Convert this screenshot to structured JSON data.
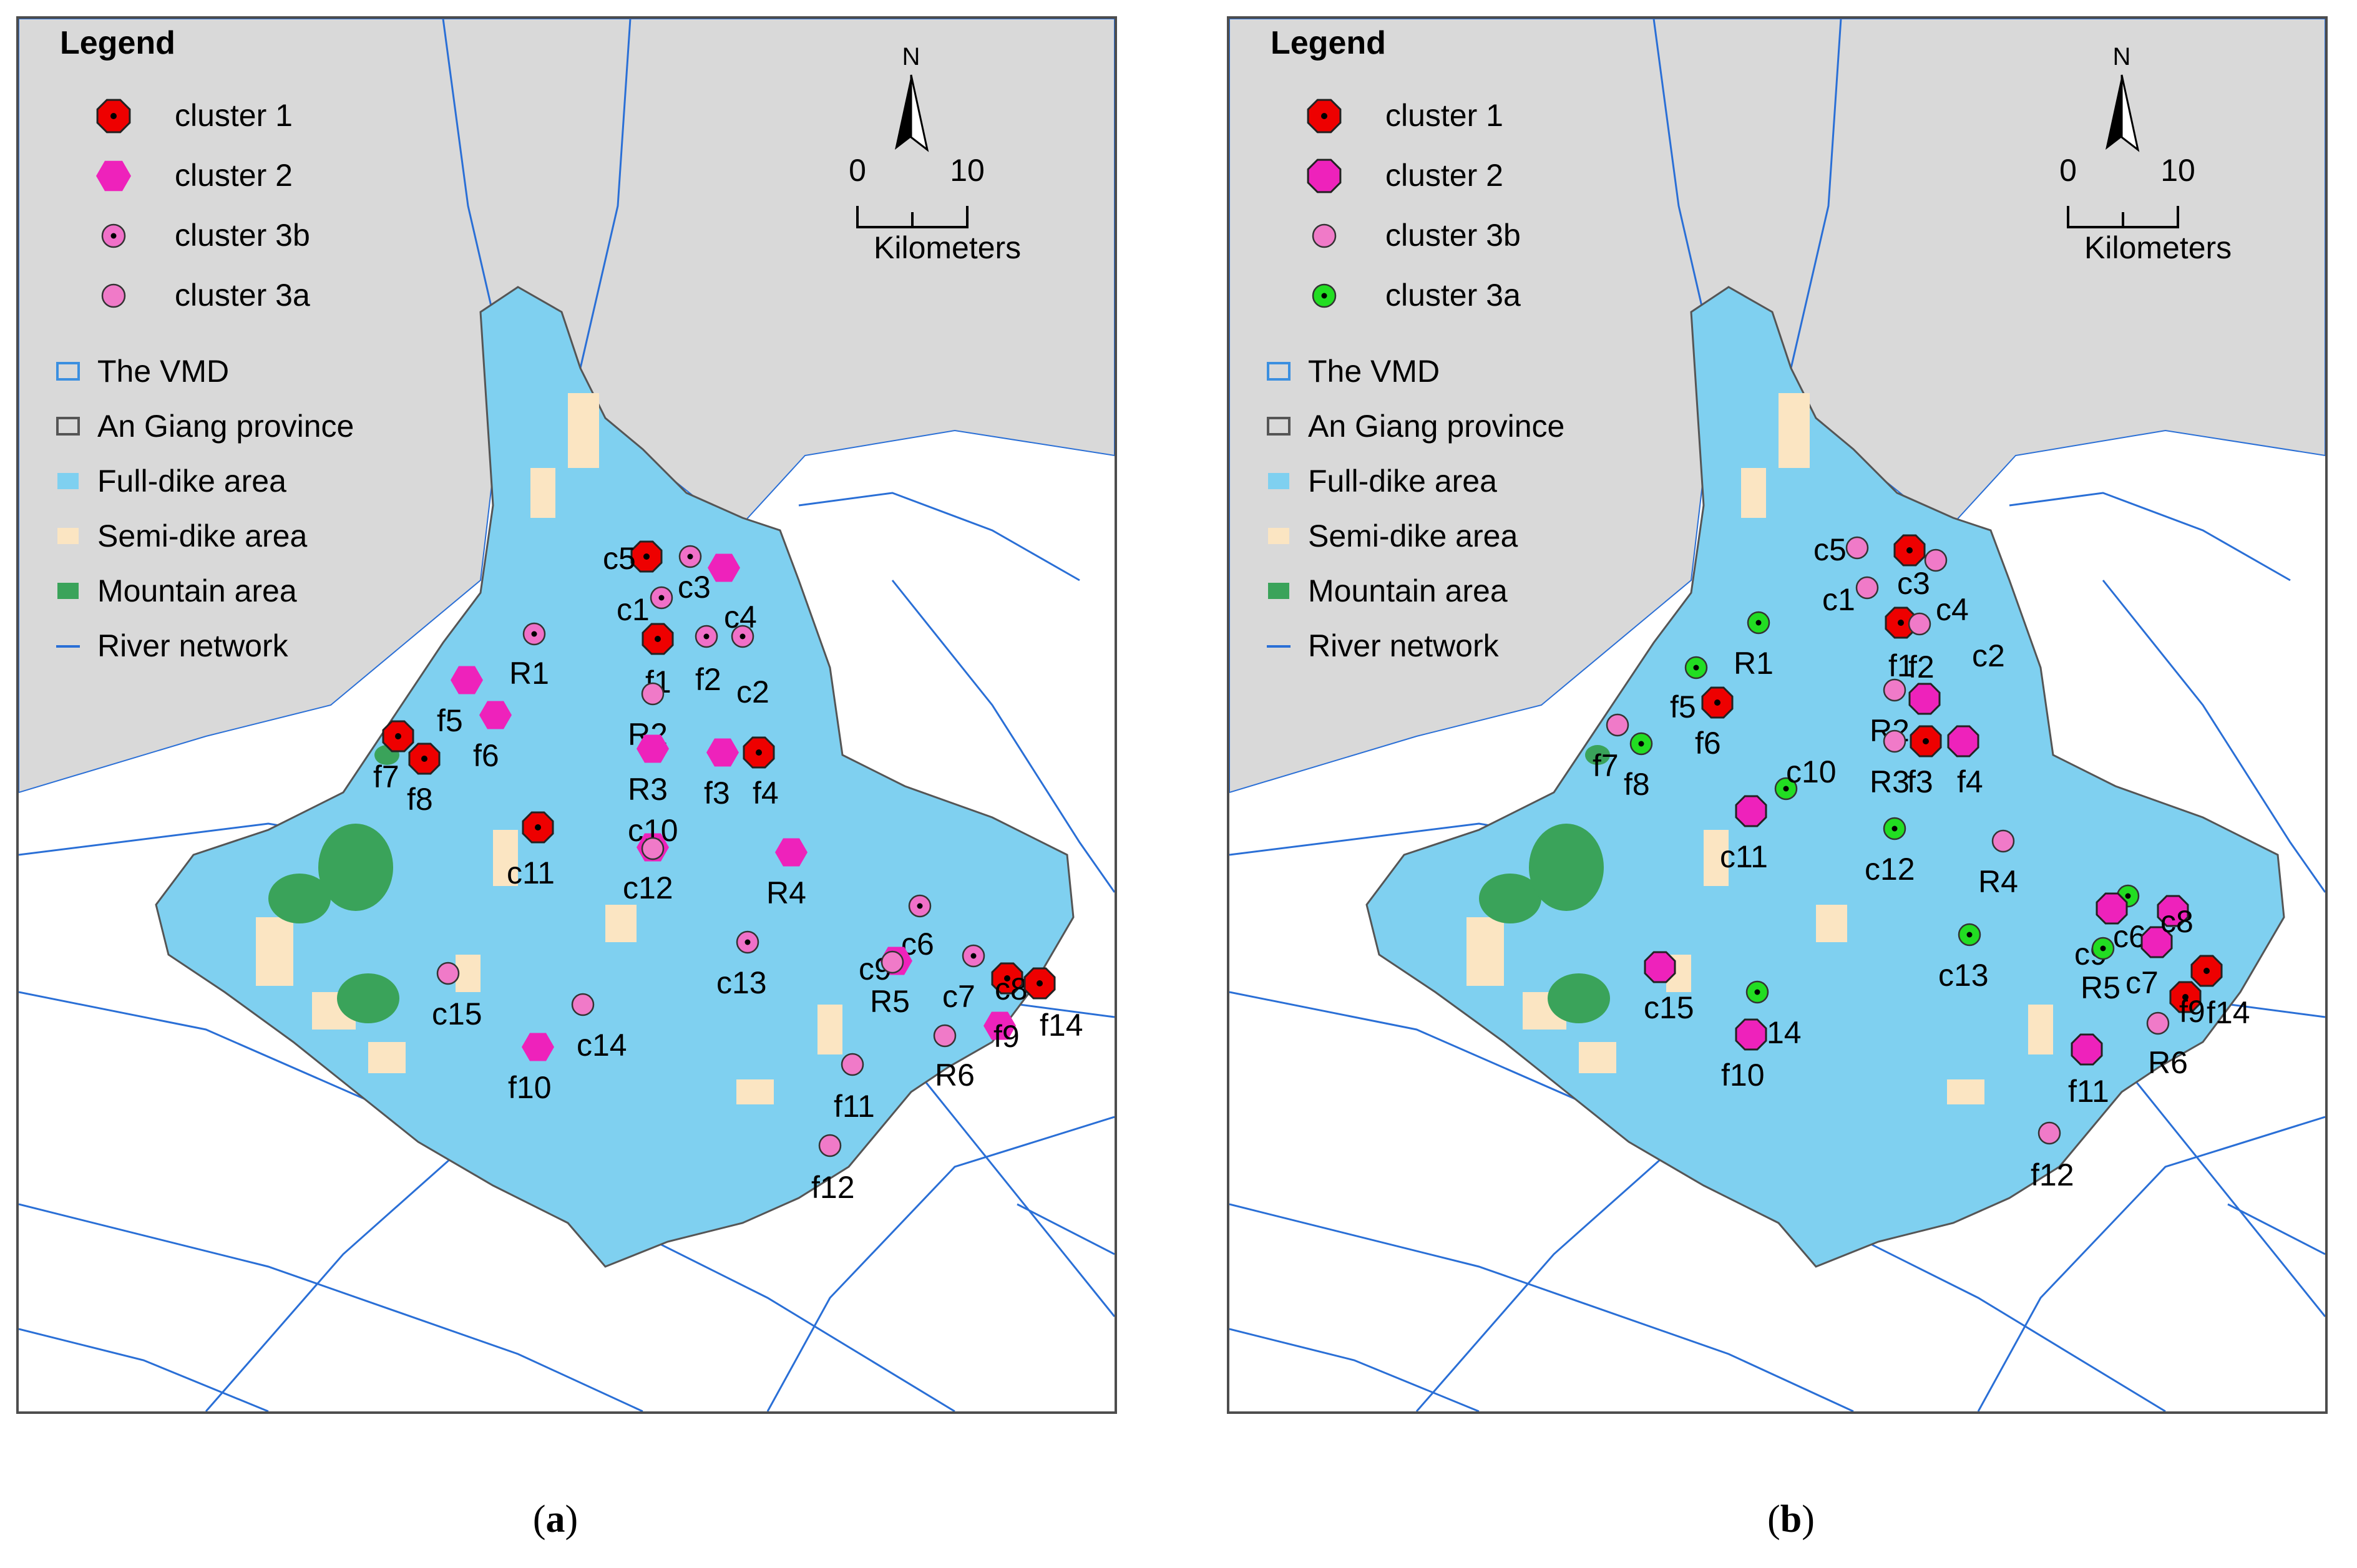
{
  "legend": {
    "title": "Legend",
    "layers": [
      {
        "label": "The VMD",
        "type": "outline-box",
        "color": "#3b8fe0"
      },
      {
        "label": "An Giang province",
        "type": "outline-box",
        "color": "#555555"
      },
      {
        "label": "Full-dike area",
        "type": "fill-box",
        "color": "#7fd0f0"
      },
      {
        "label": "Semi-dike area",
        "type": "fill-box",
        "color": "#fbe5c2"
      },
      {
        "label": "Mountain area",
        "type": "fill-box",
        "color": "#3aa35a"
      },
      {
        "label": "River network",
        "type": "line",
        "color": "#2a6fd6"
      }
    ]
  },
  "scale": {
    "north": "N",
    "zero": "0",
    "ten": "10",
    "unit": "Kilometers"
  },
  "colors": {
    "cluster1": "#ee0000",
    "cluster2": "#ee22bb",
    "cluster3b_a": "#f070c8",
    "cluster3a_a": "#f07ac8",
    "cluster3b_b": "#f07ac8",
    "cluster3a_b": "#22dd22",
    "full_dike": "#7fd0f0",
    "semi_dike": "#fbe5c2",
    "mountain": "#3aa35a",
    "land": "#d9d9d9",
    "river": "#2a6fd6"
  },
  "panels": [
    {
      "caption_label": "a",
      "clusters": [
        {
          "id": "c1",
          "label": "cluster 1",
          "symbol": "octagon-dot",
          "color": "#ee0000"
        },
        {
          "id": "c2",
          "label": "cluster 2",
          "symbol": "hexagon",
          "color": "#ee22bb"
        },
        {
          "id": "c3b",
          "label": "cluster 3b",
          "symbol": "circle-dot",
          "color": "#f070c8"
        },
        {
          "id": "c3a",
          "label": "cluster 3a",
          "symbol": "circle",
          "color": "#f07ac8"
        }
      ],
      "sites": [
        {
          "name": "c5",
          "cluster": "c1"
        },
        {
          "name": "c1",
          "cluster": "c3b"
        },
        {
          "name": "c3",
          "cluster": "c3b"
        },
        {
          "name": "c4",
          "cluster": "c2"
        },
        {
          "name": "R1",
          "cluster": "c3b"
        },
        {
          "name": "f1",
          "cluster": "c1"
        },
        {
          "name": "f2",
          "cluster": "c3b"
        },
        {
          "name": "c2",
          "cluster": "c3b"
        },
        {
          "name": "f5",
          "cluster": "c2"
        },
        {
          "name": "f6",
          "cluster": "c2"
        },
        {
          "name": "R2",
          "cluster": "c3a"
        },
        {
          "name": "f7",
          "cluster": "c1"
        },
        {
          "name": "f8",
          "cluster": "c1"
        },
        {
          "name": "R3",
          "cluster": "c2"
        },
        {
          "name": "f3",
          "cluster": "c2"
        },
        {
          "name": "f4",
          "cluster": "c1"
        },
        {
          "name": "c11",
          "cluster": "c1"
        },
        {
          "name": "c10",
          "cluster": "c2"
        },
        {
          "name": "c12",
          "cluster": "c3a"
        },
        {
          "name": "R4",
          "cluster": "c2"
        },
        {
          "name": "c6",
          "cluster": "c3b"
        },
        {
          "name": "c9",
          "cluster": "c2"
        },
        {
          "name": "c13",
          "cluster": "c3b"
        },
        {
          "name": "c7",
          "cluster": "c3b"
        },
        {
          "name": "c8",
          "cluster": "c1"
        },
        {
          "name": "R5",
          "cluster": "c3a"
        },
        {
          "name": "f9",
          "cluster": "c2"
        },
        {
          "name": "f14",
          "cluster": "c1"
        },
        {
          "name": "c15",
          "cluster": "c3a"
        },
        {
          "name": "c14",
          "cluster": "c3a"
        },
        {
          "name": "f10",
          "cluster": "c2"
        },
        {
          "name": "R6",
          "cluster": "c3a"
        },
        {
          "name": "f11",
          "cluster": "c3a"
        },
        {
          "name": "f12",
          "cluster": "c3a"
        }
      ]
    },
    {
      "caption_label": "b",
      "clusters": [
        {
          "id": "c1",
          "label": "cluster 1",
          "symbol": "octagon-dot",
          "color": "#ee0000"
        },
        {
          "id": "c2",
          "label": "cluster 2",
          "symbol": "octagon",
          "color": "#ee22bb"
        },
        {
          "id": "c3b",
          "label": "cluster 3b",
          "symbol": "circle",
          "color": "#f07ac8"
        },
        {
          "id": "c3a",
          "label": "cluster 3a",
          "symbol": "circle-dot",
          "color": "#22dd22"
        }
      ],
      "sites": [
        {
          "name": "c5",
          "cluster": "c3b"
        },
        {
          "name": "c1",
          "cluster": "c3b"
        },
        {
          "name": "c3",
          "cluster": "c1"
        },
        {
          "name": "c4",
          "cluster": "c3b"
        },
        {
          "name": "R1",
          "cluster": "c3a"
        },
        {
          "name": "f1",
          "cluster": "c1"
        },
        {
          "name": "f2",
          "cluster": "c3b"
        },
        {
          "name": "c2",
          "cluster": "c2"
        },
        {
          "name": "f5",
          "cluster": "c3a"
        },
        {
          "name": "f6",
          "cluster": "c1"
        },
        {
          "name": "R2",
          "cluster": "c3b"
        },
        {
          "name": "f7",
          "cluster": "c3b"
        },
        {
          "name": "f8",
          "cluster": "c3a"
        },
        {
          "name": "R3",
          "cluster": "c3b"
        },
        {
          "name": "f3",
          "cluster": "c1"
        },
        {
          "name": "f4",
          "cluster": "c2"
        },
        {
          "name": "c11",
          "cluster": "c2"
        },
        {
          "name": "c10",
          "cluster": "c3a"
        },
        {
          "name": "c12",
          "cluster": "c3a"
        },
        {
          "name": "R4",
          "cluster": "c3b"
        },
        {
          "name": "c6",
          "cluster": "c3a"
        },
        {
          "name": "c9",
          "cluster": "c2"
        },
        {
          "name": "c13",
          "cluster": "c3a"
        },
        {
          "name": "c7",
          "cluster": "c2"
        },
        {
          "name": "c8",
          "cluster": "c2"
        },
        {
          "name": "R5",
          "cluster": "c3a"
        },
        {
          "name": "f9",
          "cluster": "c1"
        },
        {
          "name": "f14",
          "cluster": "c1"
        },
        {
          "name": "c15",
          "cluster": "c2"
        },
        {
          "name": "c14",
          "cluster": "c3a"
        },
        {
          "name": "f10",
          "cluster": "c2"
        },
        {
          "name": "R6",
          "cluster": "c3b"
        },
        {
          "name": "f11",
          "cluster": "c2"
        },
        {
          "name": "f12",
          "cluster": "c3b"
        }
      ]
    }
  ]
}
